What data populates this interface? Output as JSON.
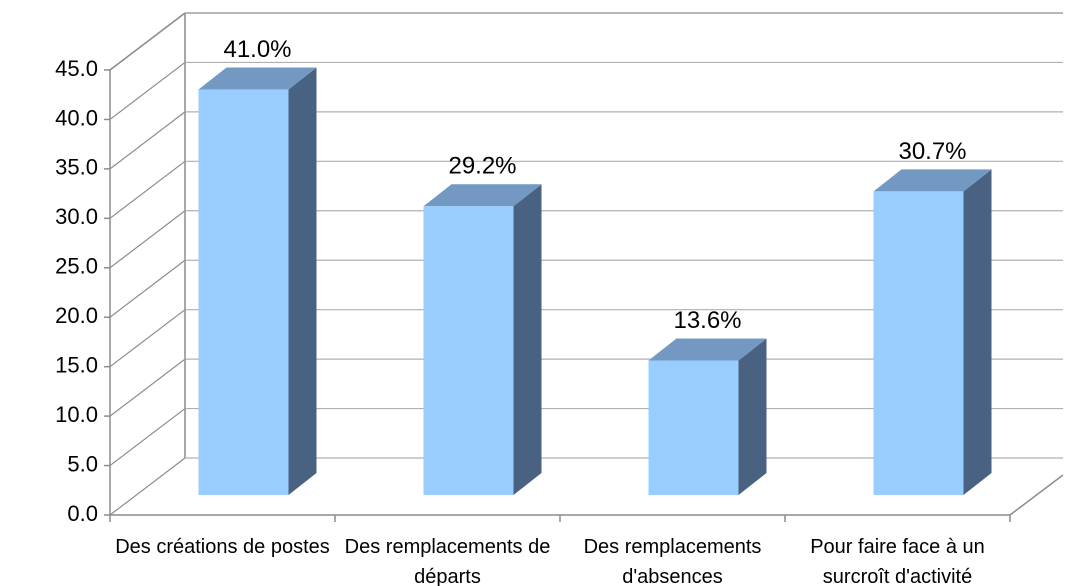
{
  "chart_data": {
    "type": "bar3d",
    "categories": [
      "Des créations de postes",
      "Des remplacements de départs",
      "Des remplacements d'absences",
      "Pour faire face à un surcroît d'activité"
    ],
    "values": [
      41.0,
      29.2,
      13.6,
      30.7
    ],
    "value_labels": [
      "41.0%",
      "29.2%",
      "13.6%",
      "30.7%"
    ],
    "colors": {
      "front": "#99ccff",
      "side": "#4a6282",
      "top": "#7399c2"
    },
    "ylim": [
      0,
      45
    ],
    "yticks": [
      {
        "value": 0,
        "label": "0.0"
      },
      {
        "value": 5,
        "label": "5.0"
      },
      {
        "value": 10,
        "label": "10.0"
      },
      {
        "value": 15,
        "label": "15.0"
      },
      {
        "value": 20,
        "label": "20.0"
      },
      {
        "value": 25,
        "label": "25.0"
      },
      {
        "value": 30,
        "label": "30.0"
      },
      {
        "value": 35,
        "label": "35.0"
      },
      {
        "value": 40,
        "label": "40.0"
      },
      {
        "value": 45,
        "label": "45.0"
      }
    ],
    "grid": true
  }
}
